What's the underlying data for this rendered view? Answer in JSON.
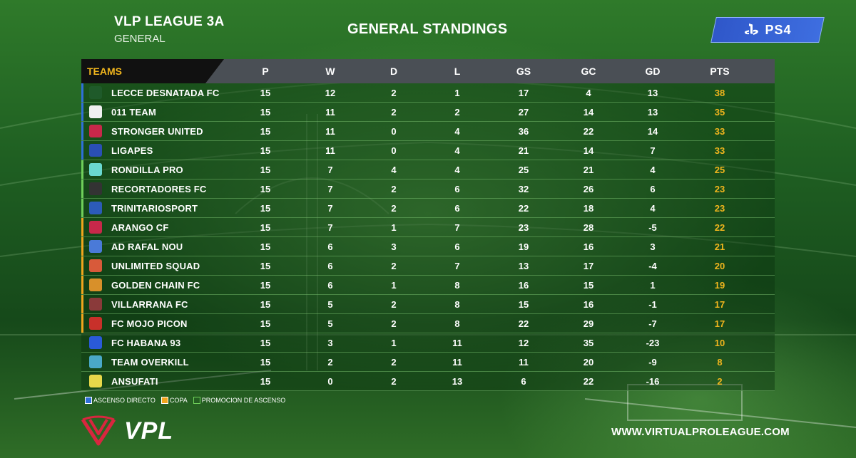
{
  "header": {
    "league_title": "VLP LEAGUE 3A",
    "league_subtitle": "GENERAL",
    "page_title": "GENERAL STANDINGS",
    "platform_badge": "PS4"
  },
  "table": {
    "teams_label": "TEAMS",
    "columns": [
      "P",
      "W",
      "D",
      "L",
      "GS",
      "GC",
      "GD",
      "PTS"
    ],
    "rows": [
      {
        "name": "LECCE DESNATADA FC",
        "P": "15",
        "W": "12",
        "D": "2",
        "L": "1",
        "GS": "17",
        "GC": "4",
        "GD": "13",
        "PTS": "38"
      },
      {
        "name": "011 TEAM",
        "P": "15",
        "W": "11",
        "D": "2",
        "L": "2",
        "GS": "27",
        "GC": "14",
        "GD": "13",
        "PTS": "35"
      },
      {
        "name": "STRONGER UNITED",
        "P": "15",
        "W": "11",
        "D": "0",
        "L": "4",
        "GS": "36",
        "GC": "22",
        "GD": "14",
        "PTS": "33"
      },
      {
        "name": "LIGAPES",
        "P": "15",
        "W": "11",
        "D": "0",
        "L": "4",
        "GS": "21",
        "GC": "14",
        "GD": "7",
        "PTS": "33"
      },
      {
        "name": "RONDILLA PRO",
        "P": "15",
        "W": "7",
        "D": "4",
        "L": "4",
        "GS": "25",
        "GC": "21",
        "GD": "4",
        "PTS": "25"
      },
      {
        "name": "RECORTADORES FC",
        "P": "15",
        "W": "7",
        "D": "2",
        "L": "6",
        "GS": "32",
        "GC": "26",
        "GD": "6",
        "PTS": "23"
      },
      {
        "name": "TRINITARIOSPORT",
        "P": "15",
        "W": "7",
        "D": "2",
        "L": "6",
        "GS": "22",
        "GC": "18",
        "GD": "4",
        "PTS": "23"
      },
      {
        "name": "ARANGO CF",
        "P": "15",
        "W": "7",
        "D": "1",
        "L": "7",
        "GS": "23",
        "GC": "28",
        "GD": "-5",
        "PTS": "22"
      },
      {
        "name": "AD RAFAL NOU",
        "P": "15",
        "W": "6",
        "D": "3",
        "L": "6",
        "GS": "19",
        "GC": "16",
        "GD": "3",
        "PTS": "21"
      },
      {
        "name": "UNLIMITED SQUAD",
        "P": "15",
        "W": "6",
        "D": "2",
        "L": "7",
        "GS": "13",
        "GC": "17",
        "GD": "-4",
        "PTS": "20"
      },
      {
        "name": "GOLDEN CHAIN FC",
        "P": "15",
        "W": "6",
        "D": "1",
        "L": "8",
        "GS": "16",
        "GC": "15",
        "GD": "1",
        "PTS": "19"
      },
      {
        "name": "VILLARRANA FC",
        "P": "15",
        "W": "5",
        "D": "2",
        "L": "8",
        "GS": "15",
        "GC": "16",
        "GD": "-1",
        "PTS": "17"
      },
      {
        "name": "FC MOJO PICON",
        "P": "15",
        "W": "5",
        "D": "2",
        "L": "8",
        "GS": "22",
        "GC": "29",
        "GD": "-7",
        "PTS": "17"
      },
      {
        "name": "FC HABANA 93",
        "P": "15",
        "W": "3",
        "D": "1",
        "L": "11",
        "GS": "12",
        "GC": "35",
        "GD": "-23",
        "PTS": "10"
      },
      {
        "name": "TEAM OVERKILL",
        "P": "15",
        "W": "2",
        "D": "2",
        "L": "11",
        "GS": "11",
        "GC": "20",
        "GD": "-9",
        "PTS": "8"
      },
      {
        "name": "ANSUFATI",
        "P": "15",
        "W": "0",
        "D": "2",
        "L": "13",
        "GS": "6",
        "GC": "22",
        "GD": "-16",
        "PTS": "2"
      }
    ]
  },
  "legend": {
    "direct": "ASCENSO DIRECTO",
    "cup": "COPA",
    "playoff": "PROMOCION DE ASCENSO"
  },
  "footer": {
    "logo_text": "VPL",
    "website": "WWW.VIRTUALPROLEAGUE.COM"
  },
  "colors": {
    "accent_gold": "#f0b51d",
    "direct_blue": "#2f6fd8",
    "cup_gold": "#f0a51d",
    "playoff_green": "#6fcf5a",
    "logo_red": "#d9263f"
  }
}
